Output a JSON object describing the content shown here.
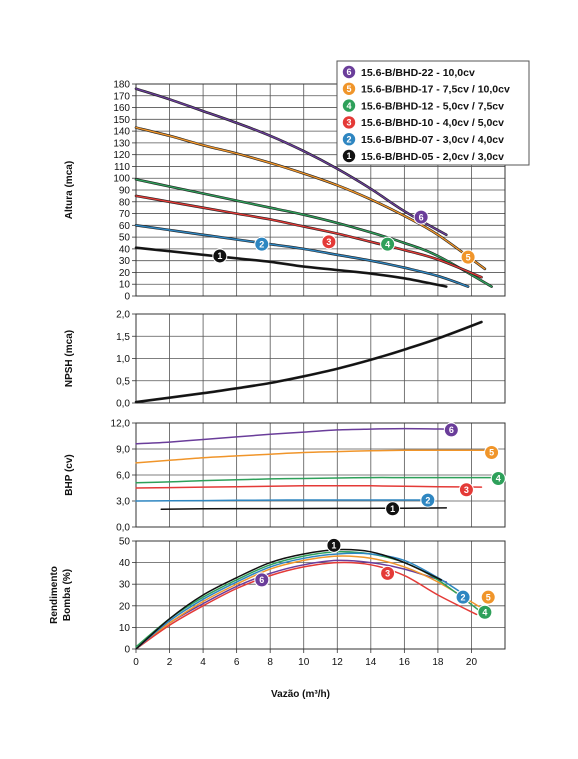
{
  "chart_data": [
    {
      "id": "altura",
      "type": "line",
      "ylabel": "Altura (mca)",
      "xlim": [
        0,
        22
      ],
      "ylim": [
        0,
        180
      ],
      "yticks": [
        0,
        10,
        20,
        30,
        40,
        50,
        60,
        70,
        80,
        90,
        100,
        110,
        120,
        130,
        140,
        150,
        160,
        170,
        180
      ],
      "ytick_labels": [
        "0",
        "10",
        "20",
        "30",
        "40",
        "50",
        "60",
        "70",
        "80",
        "90",
        "100",
        "110",
        "120",
        "130",
        "140",
        "150",
        "160",
        "170",
        "180"
      ],
      "legend": {
        "placement": "top-right"
      },
      "series": [
        {
          "marker": "6",
          "name": "15.6-B/BHD-22 - 10,0cv",
          "color": "#6a3d9a",
          "x": [
            0,
            2,
            4,
            6,
            8,
            10,
            12,
            14,
            16,
            18.5
          ],
          "y": [
            176,
            167,
            157,
            147,
            136,
            123,
            108,
            91,
            72,
            52
          ],
          "marker_at": [
            17,
            67
          ]
        },
        {
          "marker": "5",
          "name": "15.6-B/BHD-17 - 7,5cv / 10,0cv",
          "color": "#f0952a",
          "x": [
            0,
            2,
            4,
            6,
            8,
            10,
            12,
            14,
            16,
            18,
            20.8
          ],
          "y": [
            143,
            136,
            128,
            121,
            113,
            104,
            94,
            82,
            68,
            52,
            23
          ],
          "marker_at": [
            19.8,
            33
          ]
        },
        {
          "marker": "4",
          "name": "15.6-B/BHD-12 - 5,0cv / 7,5cv",
          "color": "#2ea05a",
          "x": [
            0,
            2,
            4,
            6,
            8,
            10,
            12,
            14,
            16,
            18,
            21.2
          ],
          "y": [
            99,
            93,
            87,
            81,
            75,
            69,
            62,
            54,
            45,
            34,
            8
          ],
          "marker_at": [
            15,
            44
          ]
        },
        {
          "marker": "3",
          "name": "15.6-B/BHD-10 - 4,0cv / 5,0cv",
          "color": "#e43a37",
          "x": [
            0,
            2,
            4,
            6,
            8,
            10,
            12,
            14,
            16,
            18,
            20.6
          ],
          "y": [
            85,
            80,
            75,
            70,
            65,
            59,
            53,
            46,
            39,
            31,
            16
          ],
          "marker_at": [
            11.5,
            46
          ]
        },
        {
          "marker": "2",
          "name": "15.6-B/BHD-07 - 3,0cv / 4,0cv",
          "color": "#2e86c1",
          "x": [
            0,
            2,
            4,
            6,
            8,
            10,
            12,
            14,
            16,
            18,
            19.8
          ],
          "y": [
            60,
            56,
            52,
            48,
            44,
            40,
            35,
            30,
            24,
            17,
            8
          ],
          "marker_at": [
            7.5,
            44
          ]
        },
        {
          "marker": "1",
          "name": "15.6-B/BHD-05 - 2,0cv / 3,0cv",
          "color": "#111111",
          "x": [
            0,
            2,
            4,
            6,
            8,
            10,
            12,
            14,
            16,
            18.5
          ],
          "y": [
            41,
            38,
            35,
            32,
            29,
            25,
            22,
            19,
            15,
            8
          ],
          "marker_at": [
            5,
            34
          ]
        }
      ]
    },
    {
      "id": "npsh",
      "type": "line",
      "ylabel": "NPSH (mca)",
      "xlim": [
        0,
        22
      ],
      "ylim": [
        0,
        2
      ],
      "yticks": [
        0,
        0.5,
        1,
        1.5,
        2
      ],
      "ytick_labels": [
        "0,0",
        "0,5",
        "1,0",
        "1,5",
        "2,0"
      ],
      "series": [
        {
          "color": "#111111",
          "x": [
            0,
            2,
            4,
            6,
            8,
            10,
            12,
            14,
            16,
            18,
            20.6
          ],
          "y": [
            0.02,
            0.12,
            0.22,
            0.33,
            0.45,
            0.6,
            0.77,
            0.97,
            1.2,
            1.45,
            1.82
          ]
        }
      ]
    },
    {
      "id": "bhp",
      "type": "line",
      "ylabel": "BHP (cv)",
      "xlim": [
        0,
        22
      ],
      "ylim": [
        0,
        12
      ],
      "yticks": [
        0,
        3,
        6,
        9,
        12
      ],
      "ytick_labels": [
        "0,0",
        "3,0",
        "6,0",
        "9,0",
        "12,0"
      ],
      "series": [
        {
          "marker": "6",
          "color": "#6a3d9a",
          "x": [
            0,
            2,
            4,
            6,
            8,
            10,
            12,
            14,
            16,
            18.5
          ],
          "y": [
            9.6,
            9.8,
            10.1,
            10.4,
            10.7,
            10.95,
            11.2,
            11.3,
            11.35,
            11.3
          ],
          "marker_at": [
            18.8,
            11.2
          ]
        },
        {
          "marker": "5",
          "color": "#f0952a",
          "x": [
            0,
            2,
            4,
            6,
            8,
            10,
            12,
            14,
            16,
            18,
            21
          ],
          "y": [
            7.4,
            7.7,
            8.0,
            8.2,
            8.4,
            8.6,
            8.7,
            8.8,
            8.85,
            8.85,
            8.85
          ],
          "marker_at": [
            21.2,
            8.6
          ]
        },
        {
          "marker": "4",
          "color": "#2ea05a",
          "x": [
            0,
            2,
            4,
            6,
            8,
            10,
            12,
            14,
            16,
            18,
            21.4
          ],
          "y": [
            5.1,
            5.2,
            5.35,
            5.45,
            5.55,
            5.6,
            5.65,
            5.7,
            5.7,
            5.7,
            5.7
          ],
          "marker_at": [
            21.6,
            5.6
          ]
        },
        {
          "marker": "3",
          "color": "#e43a37",
          "x": [
            0,
            2,
            4,
            6,
            8,
            10,
            12,
            14,
            16,
            18,
            20.6
          ],
          "y": [
            4.5,
            4.55,
            4.6,
            4.65,
            4.7,
            4.75,
            4.75,
            4.75,
            4.7,
            4.65,
            4.6
          ],
          "marker_at": [
            19.7,
            4.3
          ]
        },
        {
          "marker": "2",
          "color": "#2e86c1",
          "x": [
            0,
            2,
            4,
            6,
            8,
            10,
            12,
            14,
            16,
            17.7
          ],
          "y": [
            3.0,
            3.02,
            3.05,
            3.08,
            3.1,
            3.12,
            3.12,
            3.12,
            3.12,
            3.12
          ],
          "marker_at": [
            17.4,
            3.1
          ]
        },
        {
          "marker": "1",
          "color": "#111111",
          "x": [
            1.5,
            4,
            8,
            12,
            16,
            18.5
          ],
          "y": [
            2.05,
            2.1,
            2.12,
            2.15,
            2.17,
            2.2
          ],
          "marker_at": [
            15.3,
            2.1
          ]
        }
      ]
    },
    {
      "id": "rendimento",
      "type": "line",
      "ylabel": "Rendimento Bomba (%)",
      "xlabel": "Vazão (m³/h)",
      "xlim": [
        0,
        22
      ],
      "xticks": [
        0,
        2,
        4,
        6,
        8,
        10,
        12,
        14,
        16,
        18,
        20
      ],
      "xtick_labels": [
        "0",
        "2",
        "4",
        "6",
        "8",
        "10",
        "12",
        "14",
        "16",
        "18",
        "20"
      ],
      "ylim": [
        0,
        50
      ],
      "yticks": [
        0,
        10,
        20,
        30,
        40,
        50
      ],
      "ytick_labels": [
        "0",
        "10",
        "20",
        "30",
        "40",
        "50"
      ],
      "series": [
        {
          "marker": "6",
          "color": "#6a3d9a",
          "x": [
            0,
            2,
            4,
            6,
            8,
            10,
            12,
            14,
            16,
            18.5
          ],
          "y": [
            0,
            12,
            21,
            29,
            35,
            39,
            41,
            40,
            37,
            31
          ],
          "marker_at": [
            7.5,
            32
          ]
        },
        {
          "marker": "5",
          "color": "#f0952a",
          "x": [
            0,
            2,
            4,
            6,
            8,
            10,
            12,
            14,
            16,
            18,
            20.8
          ],
          "y": [
            0,
            12,
            22,
            30,
            37,
            41,
            43,
            42,
            38,
            31,
            18
          ],
          "marker_at": [
            21,
            24
          ]
        },
        {
          "marker": "4",
          "color": "#2ea05a",
          "x": [
            0,
            2,
            4,
            6,
            8,
            10,
            12,
            14,
            16,
            18,
            20.6
          ],
          "y": [
            1,
            14,
            24,
            32,
            39,
            43,
            45,
            44,
            40,
            32,
            17
          ],
          "marker_at": [
            20.8,
            17
          ]
        },
        {
          "marker": "3",
          "color": "#e43a37",
          "x": [
            0,
            2,
            4,
            6,
            8,
            10,
            12,
            14,
            16,
            18,
            20.3
          ],
          "y": [
            0,
            11,
            20,
            28,
            34,
            38,
            40,
            39,
            34,
            25,
            16
          ],
          "marker_at": [
            15,
            35
          ]
        },
        {
          "marker": "2",
          "color": "#2e86c1",
          "x": [
            0,
            2,
            4,
            6,
            8,
            10,
            12,
            14,
            16,
            18,
            19.8
          ],
          "y": [
            0,
            13,
            23,
            31,
            38,
            42,
            44,
            44,
            41,
            33,
            24
          ],
          "marker_at": [
            19.5,
            24
          ]
        },
        {
          "marker": "1",
          "color": "#111111",
          "x": [
            0,
            2,
            4,
            6,
            8,
            10,
            12,
            14,
            16,
            18.2
          ],
          "y": [
            0,
            14,
            25,
            33,
            40,
            44,
            46,
            45,
            40,
            32
          ],
          "marker_at": [
            11.8,
            48
          ]
        }
      ]
    }
  ]
}
